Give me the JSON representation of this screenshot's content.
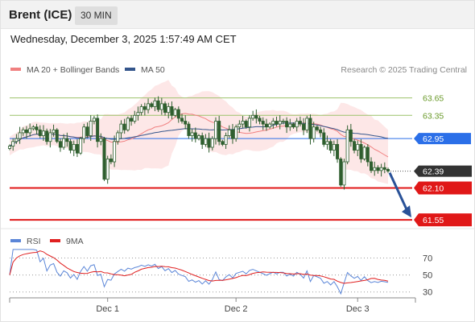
{
  "header": {
    "instrument": "Brent (ICE)",
    "timeframe": "30 MIN",
    "datetime": "Wednesday, December 3, 2025 1:57:49 AM CET"
  },
  "legend": {
    "ma20": "MA 20 + Bollinger Bands",
    "ma50": "MA 50",
    "copyright": "Research © 2025 Trading Central"
  },
  "colors": {
    "ma20": "#f08080",
    "ma50": "#34558b",
    "bands": "#fde3e3",
    "resistance": "#9cc26a",
    "support": "#e01818",
    "pivot": "#2b6fe8",
    "last": "#333333",
    "arrow": "#2a5298",
    "rsi": "#5b86d8",
    "rsi_ma": "#e02020"
  },
  "chart_data": {
    "type": "line",
    "subtype": "candlestick",
    "ylim": [
      61.4,
      63.95
    ],
    "levels": [
      {
        "value": 63.65,
        "label": "63.65",
        "kind": "resistance"
      },
      {
        "value": 63.35,
        "label": "63.35",
        "kind": "resistance"
      },
      {
        "value": 62.95,
        "label": "62.95",
        "kind": "pivot"
      },
      {
        "value": 62.39,
        "label": "62.39",
        "kind": "last"
      },
      {
        "value": 62.1,
        "label": "62.10",
        "kind": "support"
      },
      {
        "value": 61.55,
        "label": "61.55",
        "kind": "support"
      }
    ],
    "x_ticks": [
      {
        "label": "Dec 1",
        "bar": 29
      },
      {
        "label": "Dec 2",
        "bar": 67
      },
      {
        "label": "Dec 3",
        "bar": 103
      }
    ],
    "closes": [
      62.82,
      62.9,
      62.95,
      63.05,
      63.1,
      63.05,
      63.12,
      63.15,
      63.1,
      63.0,
      63.08,
      62.9,
      63.05,
      63.1,
      62.9,
      62.8,
      62.95,
      62.9,
      62.75,
      62.85,
      62.7,
      62.95,
      63.15,
      63.0,
      63.25,
      63.3,
      62.9,
      62.95,
      62.25,
      62.6,
      62.55,
      62.9,
      63.05,
      63.2,
      63.1,
      63.3,
      63.25,
      63.35,
      63.4,
      63.5,
      63.45,
      63.55,
      63.5,
      63.6,
      63.45,
      63.55,
      63.4,
      63.5,
      63.35,
      63.45,
      63.3,
      63.25,
      63.2,
      63.0,
      63.05,
      62.95,
      63.0,
      62.85,
      62.95,
      62.8,
      62.95,
      63.25,
      62.9,
      62.85,
      63.0,
      63.1,
      62.95,
      63.15,
      63.2,
      63.25,
      63.15,
      63.3,
      63.35,
      63.3,
      63.25,
      63.2,
      63.15,
      63.2,
      63.25,
      63.2,
      63.25,
      63.25,
      63.15,
      63.2,
      63.15,
      63.25,
      63.2,
      63.1,
      63.3,
      62.95,
      63.15,
      63.1,
      63.05,
      62.85,
      62.9,
      62.75,
      62.85,
      62.6,
      62.15,
      62.55,
      63.1,
      62.9,
      62.75,
      62.85,
      62.6,
      62.8,
      62.55,
      62.4,
      62.45,
      62.4,
      62.45,
      62.42,
      62.39
    ],
    "rsi": {
      "name": "RSI",
      "ma_name": "9MA",
      "ylim": [
        25,
        78
      ],
      "ticks": [
        70,
        50,
        30
      ]
    }
  }
}
